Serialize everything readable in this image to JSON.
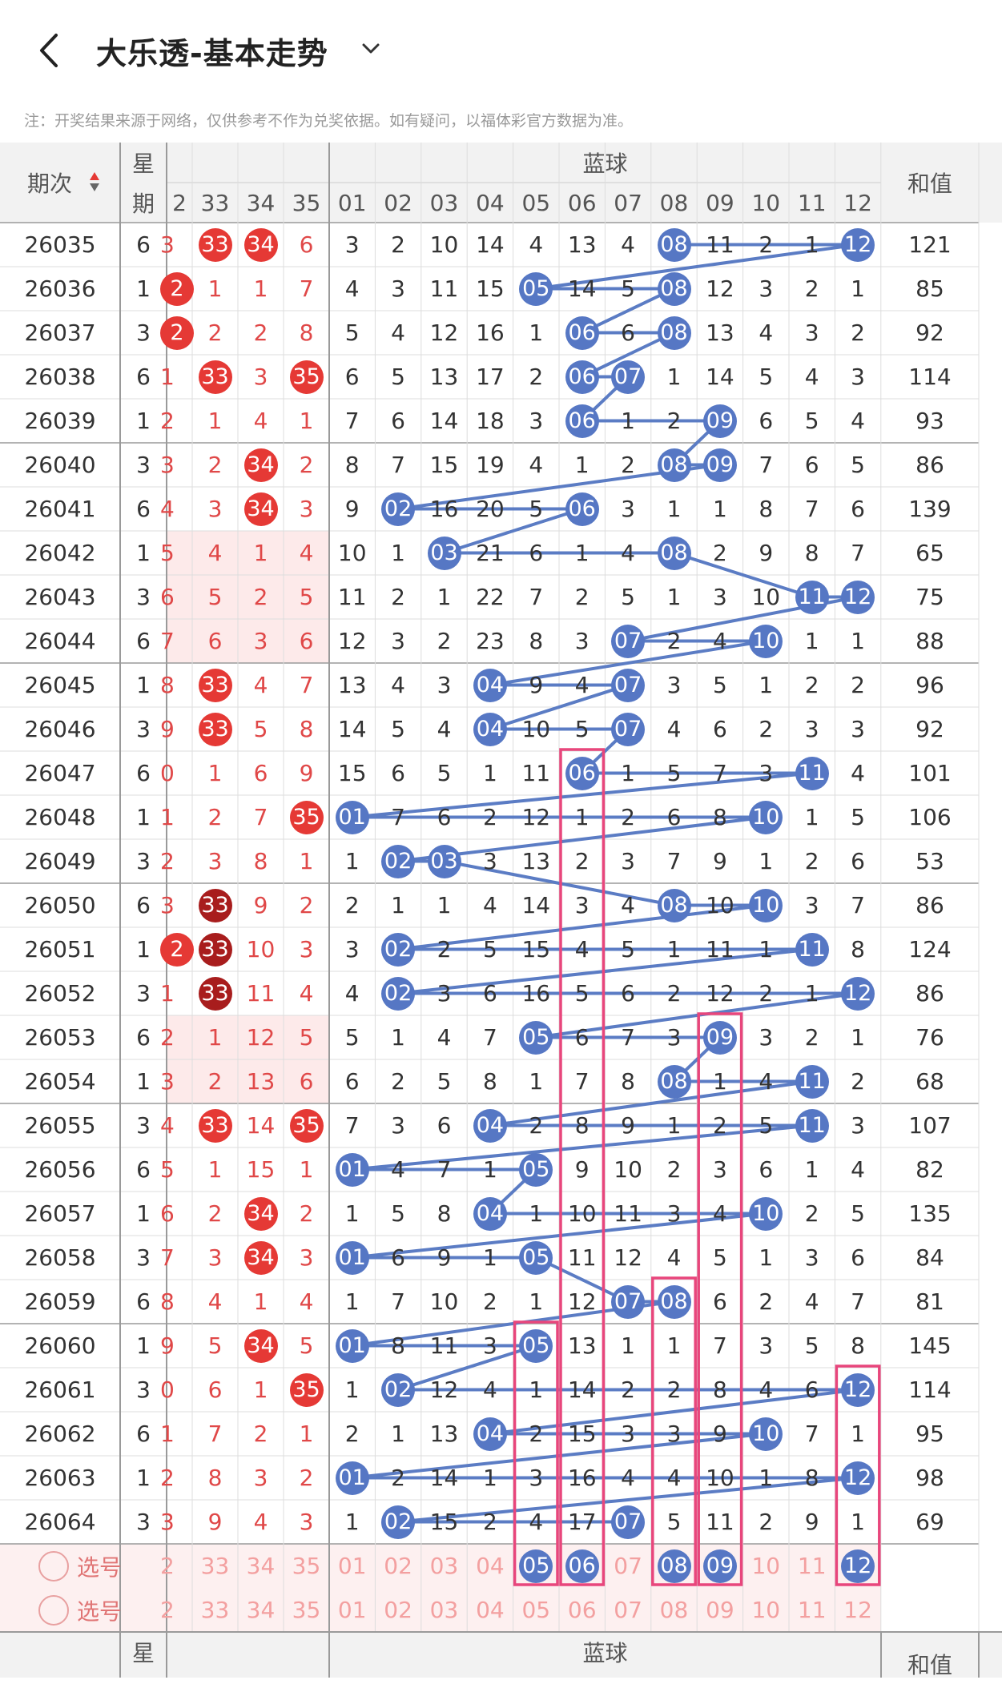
{
  "header": {
    "title": "大乐透-基本走势",
    "back_icon": "chevron-left-icon",
    "dropdown_icon": "chevron-down-icon"
  },
  "notice": "注：开奖结果来源于网络，仅供参考不作为兑奖依据。如有疑问，以福体彩官方数据为准。",
  "columns": {
    "period": "期次",
    "weekday_top": "星",
    "weekday_bottom": "期",
    "blue_group": "蓝球",
    "sum": "和值",
    "red_tail": [
      "2",
      "33",
      "34",
      "35"
    ],
    "blue": [
      "01",
      "02",
      "03",
      "04",
      "05",
      "06",
      "07",
      "08",
      "09",
      "10",
      "11",
      "12"
    ]
  },
  "sort_icon": "sort-arrows-icon",
  "rows": [
    {
      "period": "26035",
      "wd": "6",
      "r": [
        "3",
        "33",
        "34",
        "6"
      ],
      "hit": [
        1,
        2
      ],
      "b": [
        "3",
        "2",
        "10",
        "14",
        "4",
        "13",
        "4",
        "08",
        "11",
        "2",
        "1",
        "12"
      ],
      "bh": [
        8,
        12
      ],
      "sum": "121"
    },
    {
      "period": "26036",
      "wd": "1",
      "r": [
        "2",
        "1",
        "1",
        "7"
      ],
      "hit": [
        0
      ],
      "b": [
        "4",
        "3",
        "11",
        "15",
        "05",
        "14",
        "5",
        "08",
        "12",
        "3",
        "2",
        "1"
      ],
      "bh": [
        5,
        8
      ],
      "sum": "85"
    },
    {
      "period": "26037",
      "wd": "3",
      "r": [
        "2",
        "2",
        "2",
        "8"
      ],
      "hit": [
        0
      ],
      "b": [
        "5",
        "4",
        "12",
        "16",
        "1",
        "06",
        "6",
        "08",
        "13",
        "4",
        "3",
        "2"
      ],
      "bh": [
        6,
        8
      ],
      "sum": "92"
    },
    {
      "period": "26038",
      "wd": "6",
      "r": [
        "1",
        "33",
        "3",
        "35"
      ],
      "hit": [
        1,
        3
      ],
      "b": [
        "6",
        "5",
        "13",
        "17",
        "2",
        "06",
        "07",
        "1",
        "14",
        "5",
        "4",
        "3"
      ],
      "bh": [
        6,
        7
      ],
      "sum": "114"
    },
    {
      "period": "26039",
      "wd": "1",
      "r": [
        "2",
        "1",
        "4",
        "1"
      ],
      "hit": [],
      "b": [
        "7",
        "6",
        "14",
        "18",
        "3",
        "06",
        "1",
        "2",
        "09",
        "6",
        "5",
        "4"
      ],
      "bh": [
        6,
        9
      ],
      "sum": "93"
    },
    {
      "period": "26040",
      "wd": "3",
      "r": [
        "3",
        "2",
        "34",
        "2"
      ],
      "hit": [
        2
      ],
      "b": [
        "8",
        "7",
        "15",
        "19",
        "4",
        "1",
        "2",
        "08",
        "09",
        "7",
        "6",
        "5"
      ],
      "bh": [
        8,
        9
      ],
      "sum": "86"
    },
    {
      "period": "26041",
      "wd": "6",
      "r": [
        "4",
        "3",
        "34",
        "3"
      ],
      "hit": [
        2
      ],
      "b": [
        "9",
        "02",
        "16",
        "20",
        "5",
        "06",
        "3",
        "1",
        "1",
        "8",
        "7",
        "6"
      ],
      "bh": [
        2,
        6
      ],
      "sum": "139"
    },
    {
      "period": "26042",
      "wd": "1",
      "r": [
        "5",
        "4",
        "1",
        "4"
      ],
      "hit": [],
      "b": [
        "10",
        "1",
        "03",
        "21",
        "6",
        "1",
        "4",
        "08",
        "2",
        "9",
        "8",
        "7"
      ],
      "bh": [
        3,
        8
      ],
      "sum": "65"
    },
    {
      "period": "26043",
      "wd": "3",
      "r": [
        "6",
        "5",
        "2",
        "5"
      ],
      "hit": [],
      "b": [
        "11",
        "2",
        "1",
        "22",
        "7",
        "2",
        "5",
        "1",
        "3",
        "10",
        "11",
        "12"
      ],
      "bh": [
        11,
        12
      ],
      "sum": "75"
    },
    {
      "period": "26044",
      "wd": "6",
      "r": [
        "7",
        "6",
        "3",
        "6"
      ],
      "hit": [],
      "b": [
        "12",
        "3",
        "2",
        "23",
        "8",
        "3",
        "07",
        "2",
        "4",
        "10",
        "1",
        "1"
      ],
      "bh": [
        7,
        10
      ],
      "sum": "88"
    },
    {
      "period": "26045",
      "wd": "1",
      "r": [
        "8",
        "33",
        "4",
        "7"
      ],
      "hit": [
        1
      ],
      "b": [
        "13",
        "4",
        "3",
        "04",
        "9",
        "4",
        "07",
        "3",
        "5",
        "1",
        "2",
        "2"
      ],
      "bh": [
        4,
        7
      ],
      "sum": "96"
    },
    {
      "period": "26046",
      "wd": "3",
      "r": [
        "9",
        "33",
        "5",
        "8"
      ],
      "hit": [
        1
      ],
      "b": [
        "14",
        "5",
        "4",
        "04",
        "10",
        "5",
        "07",
        "4",
        "6",
        "2",
        "3",
        "3"
      ],
      "bh": [
        4,
        7
      ],
      "sum": "92"
    },
    {
      "period": "26047",
      "wd": "6",
      "r": [
        "0",
        "1",
        "6",
        "9"
      ],
      "hit": [],
      "b": [
        "15",
        "6",
        "5",
        "1",
        "11",
        "06",
        "1",
        "5",
        "7",
        "3",
        "11",
        "4"
      ],
      "bh": [
        6,
        11
      ],
      "sum": "101"
    },
    {
      "period": "26048",
      "wd": "1",
      "r": [
        "1",
        "2",
        "7",
        "35"
      ],
      "hit": [
        3
      ],
      "b": [
        "01",
        "7",
        "6",
        "2",
        "12",
        "1",
        "2",
        "6",
        "8",
        "10",
        "1",
        "5"
      ],
      "bh": [
        1,
        10
      ],
      "sum": "106"
    },
    {
      "period": "26049",
      "wd": "3",
      "r": [
        "2",
        "3",
        "8",
        "1"
      ],
      "hit": [],
      "b": [
        "1",
        "02",
        "03",
        "3",
        "13",
        "2",
        "3",
        "7",
        "9",
        "1",
        "2",
        "6"
      ],
      "bh": [
        2,
        3
      ],
      "sum": "53"
    },
    {
      "period": "26050",
      "wd": "6",
      "r": [
        "3",
        "33",
        "9",
        "2"
      ],
      "hit": [
        1
      ],
      "dark": [
        1
      ],
      "b": [
        "2",
        "1",
        "1",
        "4",
        "14",
        "3",
        "4",
        "08",
        "10",
        "10",
        "3",
        "7"
      ],
      "bh": [
        8,
        10
      ],
      "sum": "86"
    },
    {
      "period": "26051",
      "wd": "1",
      "r": [
        "2",
        "33",
        "10",
        "3"
      ],
      "hit": [
        0,
        1
      ],
      "dark": [
        1
      ],
      "b": [
        "3",
        "02",
        "2",
        "5",
        "15",
        "4",
        "5",
        "1",
        "11",
        "1",
        "11",
        "8"
      ],
      "bh": [
        2,
        11
      ],
      "sum": "124"
    },
    {
      "period": "26052",
      "wd": "3",
      "r": [
        "1",
        "33",
        "11",
        "4"
      ],
      "hit": [
        1
      ],
      "dark": [
        1
      ],
      "b": [
        "4",
        "02",
        "3",
        "6",
        "16",
        "5",
        "6",
        "2",
        "12",
        "2",
        "1",
        "12"
      ],
      "bh": [
        2,
        12
      ],
      "sum": "86"
    },
    {
      "period": "26053",
      "wd": "6",
      "r": [
        "2",
        "1",
        "12",
        "5"
      ],
      "hit": [],
      "b": [
        "5",
        "1",
        "4",
        "7",
        "05",
        "6",
        "7",
        "3",
        "09",
        "3",
        "2",
        "1"
      ],
      "bh": [
        5,
        9
      ],
      "sum": "76"
    },
    {
      "period": "26054",
      "wd": "1",
      "r": [
        "3",
        "2",
        "13",
        "6"
      ],
      "hit": [],
      "b": [
        "6",
        "2",
        "5",
        "8",
        "1",
        "7",
        "8",
        "08",
        "1",
        "4",
        "11",
        "2"
      ],
      "bh": [
        8,
        11
      ],
      "sum": "68"
    },
    {
      "period": "26055",
      "wd": "3",
      "r": [
        "4",
        "33",
        "14",
        "35"
      ],
      "hit": [
        1,
        3
      ],
      "b": [
        "7",
        "3",
        "6",
        "04",
        "2",
        "8",
        "9",
        "1",
        "2",
        "5",
        "11",
        "3"
      ],
      "bh": [
        4,
        11
      ],
      "sum": "107"
    },
    {
      "period": "26056",
      "wd": "6",
      "r": [
        "5",
        "1",
        "15",
        "1"
      ],
      "hit": [],
      "b": [
        "01",
        "4",
        "7",
        "1",
        "05",
        "9",
        "10",
        "2",
        "3",
        "6",
        "1",
        "4"
      ],
      "bh": [
        1,
        5
      ],
      "sum": "82"
    },
    {
      "period": "26057",
      "wd": "1",
      "r": [
        "6",
        "2",
        "34",
        "2"
      ],
      "hit": [
        2
      ],
      "b": [
        "1",
        "5",
        "8",
        "04",
        "1",
        "10",
        "11",
        "3",
        "4",
        "10",
        "2",
        "5"
      ],
      "bh": [
        4,
        10
      ],
      "sum": "135"
    },
    {
      "period": "26058",
      "wd": "3",
      "r": [
        "7",
        "3",
        "34",
        "3"
      ],
      "hit": [
        2
      ],
      "b": [
        "01",
        "6",
        "9",
        "1",
        "05",
        "11",
        "12",
        "4",
        "5",
        "1",
        "3",
        "6"
      ],
      "bh": [
        1,
        5
      ],
      "sum": "84"
    },
    {
      "period": "26059",
      "wd": "6",
      "r": [
        "8",
        "4",
        "1",
        "4"
      ],
      "hit": [],
      "b": [
        "1",
        "7",
        "10",
        "2",
        "1",
        "12",
        "07",
        "08",
        "6",
        "2",
        "4",
        "7"
      ],
      "bh": [
        7,
        8
      ],
      "sum": "81"
    },
    {
      "period": "26060",
      "wd": "1",
      "r": [
        "9",
        "5",
        "34",
        "5"
      ],
      "hit": [
        2
      ],
      "b": [
        "01",
        "8",
        "11",
        "3",
        "05",
        "13",
        "1",
        "1",
        "7",
        "3",
        "5",
        "8"
      ],
      "bh": [
        1,
        5
      ],
      "sum": "145"
    },
    {
      "period": "26061",
      "wd": "3",
      "r": [
        "0",
        "6",
        "1",
        "35"
      ],
      "hit": [
        3
      ],
      "b": [
        "1",
        "02",
        "12",
        "4",
        "1",
        "14",
        "2",
        "2",
        "8",
        "4",
        "6",
        "12"
      ],
      "bh": [
        2,
        12
      ],
      "sum": "114"
    },
    {
      "period": "26062",
      "wd": "6",
      "r": [
        "1",
        "7",
        "2",
        "1"
      ],
      "hit": [],
      "b": [
        "2",
        "1",
        "13",
        "04",
        "2",
        "15",
        "3",
        "3",
        "9",
        "10",
        "7",
        "1"
      ],
      "bh": [
        4,
        10
      ],
      "sum": "95"
    },
    {
      "period": "26063",
      "wd": "1",
      "r": [
        "2",
        "8",
        "3",
        "2"
      ],
      "hit": [],
      "b": [
        "01",
        "2",
        "14",
        "1",
        "3",
        "16",
        "4",
        "4",
        "10",
        "1",
        "8",
        "12"
      ],
      "bh": [
        1,
        12
      ],
      "sum": "98"
    },
    {
      "period": "26064",
      "wd": "3",
      "r": [
        "3",
        "9",
        "4",
        "3"
      ],
      "hit": [],
      "b": [
        "1",
        "02",
        "15",
        "2",
        "4",
        "17",
        "07",
        "5",
        "11",
        "2",
        "9",
        "1"
      ],
      "bh": [
        2,
        7
      ],
      "sum": "69"
    }
  ],
  "pick_rows": [
    {
      "label": "选号",
      "r": [
        "2",
        "33",
        "34",
        "35"
      ],
      "b": [
        "01",
        "02",
        "03",
        "04",
        "05",
        "06",
        "07",
        "08",
        "09",
        "10",
        "11",
        "12"
      ],
      "selected": [
        5,
        6,
        8,
        9,
        12
      ]
    },
    {
      "label": "选号",
      "r": [
        "2",
        "33",
        "34",
        "35"
      ],
      "b": [
        "01",
        "02",
        "03",
        "04",
        "05",
        "06",
        "07",
        "08",
        "09",
        "10",
        "11",
        "12"
      ],
      "selected": []
    }
  ],
  "colors": {
    "red_ball": "#e53935",
    "dark_red_ball": "#a81d1d",
    "blue_ball": "#5677c4",
    "line": "#5b7cc4",
    "highlight_box": "#e8467c",
    "header_bg": "#f2f2f2"
  }
}
